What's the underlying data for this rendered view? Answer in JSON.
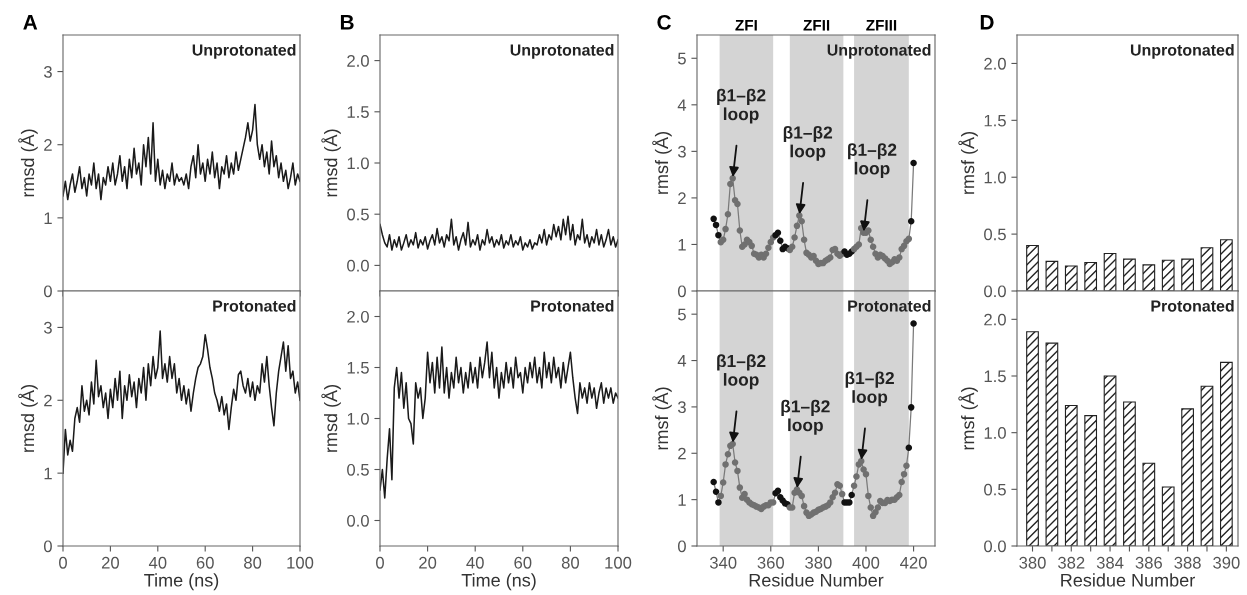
{
  "chart_data": [
    {
      "type": "line",
      "title": "A",
      "ylabel": "rmsd (Å)",
      "annotations": [
        "Unprotonated"
      ],
      "tick_labels": "y",
      "x": [
        0,
        1,
        2,
        3,
        4,
        5,
        6,
        7,
        8,
        9,
        10,
        11,
        12,
        13,
        14,
        15,
        16,
        17,
        18,
        19,
        20,
        21,
        22,
        23,
        24,
        25,
        26,
        27,
        28,
        29,
        30,
        31,
        32,
        33,
        34,
        35,
        36,
        37,
        38,
        39,
        40,
        41,
        42,
        43,
        44,
        45,
        46,
        47,
        48,
        49,
        50,
        51,
        52,
        53,
        54,
        55,
        56,
        57,
        58,
        59,
        60,
        61,
        62,
        63,
        64,
        65,
        66,
        67,
        68,
        69,
        70,
        71,
        72,
        73,
        74,
        75,
        76,
        77,
        78,
        79,
        80,
        81,
        82,
        83,
        84,
        85,
        86,
        87,
        88,
        89,
        90,
        91,
        92,
        93,
        94,
        95,
        96,
        97,
        98,
        99,
        100
      ],
      "series": [
        {
          "color": "#1a1a1a",
          "values": [
            1.3,
            1.5,
            1.25,
            1.45,
            1.6,
            1.35,
            1.5,
            1.7,
            1.4,
            1.55,
            1.3,
            1.6,
            1.45,
            1.75,
            1.4,
            1.6,
            1.25,
            1.55,
            1.45,
            1.7,
            1.5,
            1.75,
            1.45,
            1.6,
            1.85,
            1.5,
            1.7,
            1.4,
            1.8,
            1.55,
            1.95,
            1.6,
            1.75,
            1.45,
            2.0,
            1.7,
            2.1,
            1.6,
            2.3,
            1.5,
            1.8,
            1.45,
            1.65,
            1.4,
            1.6,
            1.5,
            1.75,
            1.45,
            1.6,
            1.5,
            1.55,
            1.45,
            1.6,
            1.4,
            1.7,
            1.85,
            1.55,
            2.0,
            1.6,
            1.75,
            1.5,
            1.8,
            1.6,
            1.9,
            1.55,
            1.75,
            1.4,
            1.7,
            1.6,
            1.85,
            1.55,
            1.75,
            1.6,
            1.9,
            1.65,
            1.8,
            1.95,
            2.1,
            2.3,
            2.05,
            2.2,
            2.55,
            2.0,
            1.8,
            2.0,
            1.7,
            1.9,
            1.6,
            2.05,
            1.7,
            1.85,
            1.55,
            1.75,
            1.5,
            1.65,
            1.4,
            1.55,
            1.75,
            1.45,
            1.6,
            1.5
          ]
        }
      ],
      "xlim": [
        0,
        100
      ],
      "xticks": [
        0,
        20,
        40,
        60,
        80,
        100
      ],
      "ylim": [
        0,
        3.5
      ],
      "yticks": [
        0,
        1,
        2,
        3
      ]
    },
    {
      "type": "line",
      "xlabel": "Time (ns)",
      "ylabel": "rmsd (Å)",
      "annotations": [
        "Protonated"
      ],
      "x": [
        0,
        1,
        2,
        3,
        4,
        5,
        6,
        7,
        8,
        9,
        10,
        11,
        12,
        13,
        14,
        15,
        16,
        17,
        18,
        19,
        20,
        21,
        22,
        23,
        24,
        25,
        26,
        27,
        28,
        29,
        30,
        31,
        32,
        33,
        34,
        35,
        36,
        37,
        38,
        39,
        40,
        41,
        42,
        43,
        44,
        45,
        46,
        47,
        48,
        49,
        50,
        51,
        52,
        53,
        54,
        55,
        56,
        57,
        58,
        59,
        60,
        61,
        62,
        63,
        64,
        65,
        66,
        67,
        68,
        69,
        70,
        71,
        72,
        73,
        74,
        75,
        76,
        77,
        78,
        79,
        80,
        81,
        82,
        83,
        84,
        85,
        86,
        87,
        88,
        89,
        90,
        91,
        92,
        93,
        94,
        95,
        96,
        97,
        98,
        99,
        100
      ],
      "series": [
        {
          "color": "#1a1a1a",
          "values": [
            1.0,
            1.6,
            1.25,
            1.45,
            1.3,
            1.75,
            1.9,
            1.7,
            2.2,
            1.85,
            2.0,
            1.8,
            2.25,
            1.95,
            2.55,
            2.05,
            2.2,
            1.9,
            2.1,
            1.75,
            2.15,
            1.9,
            2.3,
            2.0,
            2.4,
            1.75,
            2.2,
            2.0,
            2.35,
            2.05,
            2.25,
            1.9,
            2.3,
            2.1,
            2.45,
            2.0,
            2.5,
            2.2,
            2.6,
            2.3,
            2.45,
            2.95,
            2.3,
            2.5,
            2.25,
            2.6,
            2.3,
            2.5,
            2.1,
            2.3,
            2.0,
            2.2,
            1.95,
            2.15,
            1.85,
            2.1,
            2.3,
            2.45,
            2.5,
            2.6,
            2.9,
            2.7,
            2.45,
            2.3,
            2.1,
            2.0,
            1.85,
            2.05,
            1.8,
            1.95,
            1.6,
            1.9,
            2.15,
            2.0,
            2.35,
            2.4,
            2.2,
            2.1,
            2.3,
            2.05,
            2.25,
            2.0,
            2.2,
            2.1,
            2.5,
            2.25,
            2.6,
            2.2,
            1.9,
            1.65,
            2.1,
            2.4,
            2.6,
            2.8,
            2.4,
            2.75,
            2.3,
            2.4,
            2.1,
            2.25,
            2.0
          ]
        }
      ],
      "xlim": [
        0,
        100
      ],
      "xticks": [
        0,
        20,
        40,
        60,
        80,
        100
      ],
      "ylim": [
        0,
        3.5
      ],
      "yticks": [
        0,
        1,
        2,
        3
      ]
    },
    {
      "type": "line",
      "title": "B",
      "ylabel": "rmsd (Å)",
      "annotations": [
        "Unprotonated"
      ],
      "tick_labels": "y",
      "x": [
        0,
        1,
        2,
        3,
        4,
        5,
        6,
        7,
        8,
        9,
        10,
        11,
        12,
        13,
        14,
        15,
        16,
        17,
        18,
        19,
        20,
        21,
        22,
        23,
        24,
        25,
        26,
        27,
        28,
        29,
        30,
        31,
        32,
        33,
        34,
        35,
        36,
        37,
        38,
        39,
        40,
        41,
        42,
        43,
        44,
        45,
        46,
        47,
        48,
        49,
        50,
        51,
        52,
        53,
        54,
        55,
        56,
        57,
        58,
        59,
        60,
        61,
        62,
        63,
        64,
        65,
        66,
        67,
        68,
        69,
        70,
        71,
        72,
        73,
        74,
        75,
        76,
        77,
        78,
        79,
        80,
        81,
        82,
        83,
        84,
        85,
        86,
        87,
        88,
        89,
        90,
        91,
        92,
        93,
        94,
        95,
        96,
        97,
        98,
        99,
        100
      ],
      "series": [
        {
          "color": "#1a1a1a",
          "values": [
            0.4,
            0.3,
            0.22,
            0.18,
            0.3,
            0.15,
            0.25,
            0.18,
            0.28,
            0.15,
            0.22,
            0.3,
            0.18,
            0.25,
            0.2,
            0.32,
            0.17,
            0.25,
            0.2,
            0.28,
            0.16,
            0.24,
            0.3,
            0.2,
            0.36,
            0.22,
            0.28,
            0.18,
            0.3,
            0.24,
            0.45,
            0.2,
            0.28,
            0.15,
            0.25,
            0.32,
            0.2,
            0.42,
            0.18,
            0.25,
            0.2,
            0.3,
            0.15,
            0.25,
            0.2,
            0.35,
            0.22,
            0.28,
            0.18,
            0.25,
            0.2,
            0.3,
            0.17,
            0.24,
            0.2,
            0.3,
            0.18,
            0.24,
            0.2,
            0.28,
            0.15,
            0.22,
            0.18,
            0.25,
            0.16,
            0.22,
            0.2,
            0.3,
            0.22,
            0.35,
            0.2,
            0.3,
            0.25,
            0.4,
            0.28,
            0.38,
            0.25,
            0.45,
            0.3,
            0.48,
            0.25,
            0.4,
            0.2,
            0.3,
            0.25,
            0.45,
            0.22,
            0.3,
            0.18,
            0.28,
            0.22,
            0.35,
            0.2,
            0.3,
            0.18,
            0.25,
            0.35,
            0.2,
            0.28,
            0.18,
            0.25
          ]
        }
      ],
      "xlim": [
        0,
        100
      ],
      "xticks": [
        0,
        20,
        40,
        60,
        80,
        100
      ],
      "ylim": [
        -0.25,
        2.25
      ],
      "yticks": [
        {
          "value": 0,
          "label": "0.0"
        },
        {
          "value": 0.5,
          "label": "0.5"
        },
        {
          "value": 1,
          "label": "1.0"
        },
        {
          "value": 1.5,
          "label": "1.5"
        },
        {
          "value": 2,
          "label": "2.0"
        }
      ]
    },
    {
      "type": "line",
      "xlabel": "Time (ns)",
      "ylabel": "rmsd (Å)",
      "annotations": [
        "Protonated"
      ],
      "x": [
        0,
        1,
        2,
        3,
        4,
        5,
        6,
        7,
        8,
        9,
        10,
        11,
        12,
        13,
        14,
        15,
        16,
        17,
        18,
        19,
        20,
        21,
        22,
        23,
        24,
        25,
        26,
        27,
        28,
        29,
        30,
        31,
        32,
        33,
        34,
        35,
        36,
        37,
        38,
        39,
        40,
        41,
        42,
        43,
        44,
        45,
        46,
        47,
        48,
        49,
        50,
        51,
        52,
        53,
        54,
        55,
        56,
        57,
        58,
        59,
        60,
        61,
        62,
        63,
        64,
        65,
        66,
        67,
        68,
        69,
        70,
        71,
        72,
        73,
        74,
        75,
        76,
        77,
        78,
        79,
        80,
        81,
        82,
        83,
        84,
        85,
        86,
        87,
        88,
        89,
        90,
        91,
        92,
        93,
        94,
        95,
        96,
        97,
        98,
        99,
        100
      ],
      "series": [
        {
          "color": "#1a1a1a",
          "values": [
            0.3,
            0.5,
            0.22,
            0.6,
            0.9,
            0.4,
            1.3,
            1.5,
            1.2,
            1.45,
            1.1,
            1.35,
            1.0,
            0.95,
            0.75,
            1.35,
            1.2,
            1.3,
            1.0,
            1.2,
            1.65,
            1.35,
            1.55,
            1.25,
            1.6,
            1.3,
            1.7,
            1.25,
            1.5,
            1.2,
            1.45,
            1.3,
            1.6,
            1.35,
            1.5,
            1.25,
            1.45,
            1.3,
            1.55,
            1.35,
            1.5,
            1.3,
            1.6,
            1.4,
            1.55,
            1.75,
            1.4,
            1.65,
            1.3,
            1.5,
            1.2,
            1.45,
            1.3,
            1.55,
            1.35,
            1.5,
            1.3,
            1.6,
            1.4,
            1.45,
            1.25,
            1.5,
            1.35,
            1.55,
            1.4,
            1.6,
            1.35,
            1.5,
            1.3,
            1.65,
            1.4,
            1.55,
            1.35,
            1.6,
            1.4,
            1.5,
            1.3,
            1.55,
            1.35,
            1.5,
            1.65,
            1.4,
            1.2,
            1.05,
            1.35,
            1.2,
            1.3,
            1.15,
            1.35,
            1.2,
            1.3,
            1.1,
            1.25,
            1.35,
            1.15,
            1.3,
            1.2,
            1.3,
            1.15,
            1.25,
            1.2
          ]
        }
      ],
      "xlim": [
        0,
        100
      ],
      "xticks": [
        0,
        20,
        40,
        60,
        80,
        100
      ],
      "ylim": [
        -0.25,
        2.25
      ],
      "yticks": [
        {
          "value": 0,
          "label": "0.0"
        },
        {
          "value": 0.5,
          "label": "0.5"
        },
        {
          "value": 1,
          "label": "1.0"
        },
        {
          "value": 1.5,
          "label": "1.5"
        },
        {
          "value": 2,
          "label": "2.0"
        }
      ]
    },
    {
      "type": "line",
      "title": "C",
      "ylabel": "rmsf (Å)",
      "marker": "circle",
      "tick_labels": "y",
      "annotations": [
        "Unprotonated",
        {
          "text": "β1–β2\nloop",
          "x": 344,
          "y": 2.42
        },
        {
          "text": "β1–β2\nloop",
          "x": 372,
          "y": 1.62
        },
        {
          "text": "β1–β2\nloop",
          "x": 399,
          "y": 1.25
        }
      ],
      "bands": [
        {
          "axis": "x",
          "from": 338.5,
          "to": 361,
          "label": "ZFI",
          "color": "#d4d4d4"
        },
        {
          "axis": "x",
          "from": 368,
          "to": 390.5,
          "label": "ZFII",
          "color": "#d4d4d4"
        },
        {
          "axis": "x",
          "from": 395,
          "to": 418,
          "label": "ZFIII",
          "color": "#d4d4d4"
        }
      ],
      "x": [
        336,
        337,
        338,
        339,
        340,
        341,
        342,
        343,
        344,
        345,
        346,
        347,
        348,
        349,
        350,
        351,
        352,
        353,
        354,
        355,
        356,
        357,
        358,
        359,
        360,
        361,
        362,
        363,
        364,
        365,
        366,
        367,
        368,
        369,
        370,
        371,
        372,
        373,
        374,
        375,
        376,
        377,
        378,
        379,
        380,
        381,
        382,
        383,
        384,
        385,
        386,
        387,
        388,
        389,
        390,
        391,
        392,
        393,
        394,
        395,
        396,
        397,
        398,
        399,
        400,
        401,
        402,
        403,
        404,
        405,
        406,
        407,
        408,
        409,
        410,
        411,
        412,
        413,
        414,
        415,
        416,
        417,
        418,
        419,
        420
      ],
      "series": [
        {
          "color": "#7a7a7a",
          "values": [
            1.55,
            1.42,
            1.2,
            1.05,
            1.1,
            1.33,
            1.65,
            2.3,
            2.42,
            1.95,
            1.87,
            1.3,
            0.95,
            1.0,
            1.1,
            1.05,
            0.97,
            0.8,
            0.78,
            0.72,
            0.78,
            0.72,
            0.8,
            0.93,
            1.05,
            1.15,
            1.2,
            1.25,
            1.08,
            0.9,
            0.95,
            0.92,
            0.88,
            0.95,
            1.15,
            1.4,
            1.62,
            1.5,
            1.1,
            0.82,
            0.78,
            0.72,
            0.75,
            0.65,
            0.58,
            0.6,
            0.6,
            0.65,
            0.68,
            0.72,
            0.88,
            0.9,
            0.8,
            0.76,
            0.8,
            0.85,
            0.78,
            0.8,
            0.85,
            0.9,
            0.95,
            1.0,
            1.35,
            1.25,
            1.25,
            1.3,
            1.1,
            0.95,
            0.8,
            0.72,
            0.78,
            0.75,
            0.7,
            0.65,
            0.58,
            0.62,
            0.68,
            0.65,
            0.72,
            0.9,
            0.97,
            1.07,
            1.12,
            1.5,
            2.75
          ],
          "colors": [
            "#111111",
            "#111111",
            "#111111",
            "#707070",
            "#707070",
            "#707070",
            "#707070",
            "#707070",
            "#707070",
            "#707070",
            "#707070",
            "#707070",
            "#707070",
            "#707070",
            "#707070",
            "#707070",
            "#707070",
            "#707070",
            "#707070",
            "#707070",
            "#707070",
            "#707070",
            "#707070",
            "#707070",
            "#707070",
            "#707070",
            "#111111",
            "#111111",
            "#111111",
            "#111111",
            "#111111",
            "#111111",
            "#707070",
            "#707070",
            "#707070",
            "#707070",
            "#707070",
            "#707070",
            "#707070",
            "#707070",
            "#707070",
            "#707070",
            "#707070",
            "#707070",
            "#707070",
            "#707070",
            "#707070",
            "#707070",
            "#707070",
            "#707070",
            "#707070",
            "#707070",
            "#707070",
            "#707070",
            "#707070",
            "#111111",
            "#111111",
            "#111111",
            "#111111",
            "#707070",
            "#707070",
            "#707070",
            "#707070",
            "#707070",
            "#707070",
            "#707070",
            "#707070",
            "#707070",
            "#707070",
            "#707070",
            "#707070",
            "#707070",
            "#707070",
            "#707070",
            "#707070",
            "#707070",
            "#707070",
            "#707070",
            "#707070",
            "#707070",
            "#707070",
            "#707070",
            "#707070",
            "#111111",
            "#111111"
          ]
        }
      ],
      "xlim": [
        329,
        429
      ],
      "xticks": [
        340,
        360,
        380,
        400,
        420
      ],
      "ylim": [
        0,
        5.5
      ],
      "yticks": [
        0,
        1,
        2,
        3,
        4,
        5
      ]
    },
    {
      "type": "line",
      "xlabel": "Residue Number",
      "ylabel": "rmsf (Å)",
      "marker": "circle",
      "annotations": [
        "Protonated",
        {
          "text": "β1–β2\nloop",
          "x": 344,
          "y": 2.2
        },
        {
          "text": "β1–β2\nloop",
          "x": 371,
          "y": 1.22
        },
        {
          "text": "β1–β2\nloop",
          "x": 398,
          "y": 1.83
        }
      ],
      "bands": [
        {
          "axis": "x",
          "from": 338.5,
          "to": 361,
          "color": "#d4d4d4"
        },
        {
          "axis": "x",
          "from": 368,
          "to": 390.5,
          "color": "#d4d4d4"
        },
        {
          "axis": "x",
          "from": 395,
          "to": 418,
          "color": "#d4d4d4"
        }
      ],
      "x": [
        336,
        337,
        338,
        339,
        340,
        341,
        342,
        343,
        344,
        345,
        346,
        347,
        348,
        349,
        350,
        351,
        352,
        353,
        354,
        355,
        356,
        357,
        358,
        359,
        360,
        361,
        362,
        363,
        364,
        365,
        366,
        367,
        368,
        369,
        370,
        371,
        372,
        373,
        374,
        375,
        376,
        377,
        378,
        379,
        380,
        381,
        382,
        383,
        384,
        385,
        386,
        387,
        388,
        389,
        390,
        391,
        392,
        393,
        394,
        395,
        396,
        397,
        398,
        399,
        400,
        401,
        402,
        403,
        404,
        405,
        406,
        407,
        408,
        409,
        410,
        411,
        412,
        413,
        414,
        415,
        416,
        417,
        418,
        419,
        420
      ],
      "series": [
        {
          "color": "#7a7a7a",
          "values": [
            1.38,
            1.17,
            0.94,
            1.08,
            1.37,
            1.76,
            1.98,
            2.16,
            2.2,
            1.8,
            1.62,
            1.26,
            1.04,
            1.12,
            1.0,
            0.94,
            0.9,
            0.88,
            0.85,
            0.83,
            0.8,
            0.85,
            0.88,
            0.88,
            0.94,
            0.94,
            1.14,
            1.19,
            1.05,
            0.98,
            0.92,
            0.9,
            0.83,
            0.83,
            1.15,
            1.22,
            1.15,
            1.08,
            0.86,
            0.72,
            0.65,
            0.68,
            0.72,
            0.74,
            0.78,
            0.8,
            0.83,
            0.85,
            0.88,
            0.94,
            1.05,
            1.15,
            1.33,
            1.3,
            1.12,
            0.94,
            0.94,
            0.94,
            1.1,
            1.3,
            1.5,
            1.76,
            1.83,
            1.65,
            1.55,
            1.08,
            0.83,
            0.65,
            0.73,
            0.83,
            0.97,
            0.93,
            0.93,
            0.99,
            0.97,
            1.0,
            1.0,
            1.05,
            1.1,
            1.38,
            1.55,
            1.73,
            2.12,
            2.99,
            4.8
          ],
          "colors": [
            "#111111",
            "#111111",
            "#111111",
            "#707070",
            "#707070",
            "#707070",
            "#707070",
            "#707070",
            "#707070",
            "#707070",
            "#707070",
            "#707070",
            "#707070",
            "#707070",
            "#707070",
            "#707070",
            "#707070",
            "#707070",
            "#707070",
            "#707070",
            "#707070",
            "#707070",
            "#707070",
            "#707070",
            "#707070",
            "#707070",
            "#111111",
            "#111111",
            "#111111",
            "#111111",
            "#111111",
            "#111111",
            "#707070",
            "#707070",
            "#707070",
            "#707070",
            "#707070",
            "#707070",
            "#707070",
            "#707070",
            "#707070",
            "#707070",
            "#707070",
            "#707070",
            "#707070",
            "#707070",
            "#707070",
            "#707070",
            "#707070",
            "#707070",
            "#707070",
            "#707070",
            "#707070",
            "#707070",
            "#707070",
            "#111111",
            "#111111",
            "#111111",
            "#111111",
            "#707070",
            "#707070",
            "#707070",
            "#707070",
            "#707070",
            "#707070",
            "#707070",
            "#707070",
            "#707070",
            "#707070",
            "#707070",
            "#707070",
            "#707070",
            "#707070",
            "#707070",
            "#707070",
            "#707070",
            "#707070",
            "#707070",
            "#707070",
            "#707070",
            "#707070",
            "#707070",
            "#111111",
            "#111111",
            "#111111"
          ]
        }
      ],
      "xlim": [
        329,
        429
      ],
      "xticks": [
        340,
        360,
        380,
        400,
        420
      ],
      "ylim": [
        0,
        5.5
      ],
      "yticks": [
        0,
        1,
        2,
        3,
        4,
        5
      ]
    },
    {
      "type": "bar",
      "title": "D",
      "ylabel": "rmsf (Å)",
      "annotations": [
        "Unprotonated"
      ],
      "tick_labels": "y",
      "categories": [
        "380",
        null,
        "382",
        null,
        "384",
        null,
        "386",
        null,
        "388",
        null,
        "390"
      ],
      "values": [
        0.4,
        0.26,
        0.22,
        0.25,
        0.33,
        0.28,
        0.23,
        0.27,
        0.28,
        0.38,
        0.45
      ],
      "color": "#222222",
      "ylim": [
        0,
        2.25
      ],
      "yticks": [
        {
          "value": 0,
          "label": "0.0"
        },
        {
          "value": 0.5,
          "label": "0.5"
        },
        {
          "value": 1,
          "label": "1.0"
        },
        {
          "value": 1.5,
          "label": "1.5"
        },
        {
          "value": 2,
          "label": "2.0"
        }
      ]
    },
    {
      "type": "bar",
      "xlabel": "Residue Number",
      "ylabel": "rmsf (Å)",
      "annotations": [
        "Protonated"
      ],
      "categories": [
        "380",
        null,
        "382",
        null,
        "384",
        null,
        "386",
        null,
        "388",
        null,
        "390"
      ],
      "values": [
        1.89,
        1.79,
        1.24,
        1.15,
        1.5,
        1.27,
        0.73,
        0.52,
        1.21,
        1.41,
        1.62
      ],
      "color": "#222222",
      "ylim": [
        0,
        2.25
      ],
      "yticks": [
        {
          "value": 0,
          "label": "0.0"
        },
        {
          "value": 0.5,
          "label": "0.5"
        },
        {
          "value": 1,
          "label": "1.0"
        },
        {
          "value": 1.5,
          "label": "1.5"
        },
        {
          "value": 2,
          "label": "2.0"
        }
      ]
    }
  ]
}
